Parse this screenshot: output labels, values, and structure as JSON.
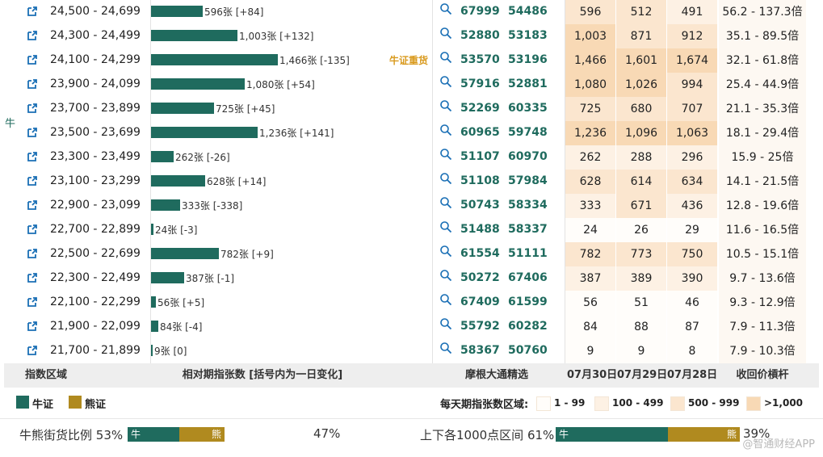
{
  "colors": {
    "bull": "#1f6b5e",
    "bear": "#b08a1f",
    "tag": "#d99a1e",
    "heat_1_99": "#fffdfa",
    "heat_100_499": "#fdf1e4",
    "heat_500_999": "#fbe6cf",
    "heat_1000_plus": "#f8d9b5"
  },
  "side_label": "牛",
  "max_count": 1466,
  "rows": [
    {
      "range": "24,500 - 24,699",
      "count": 596,
      "bar_label": "596张 [+84]",
      "tag": "",
      "code1": "67999",
      "code2": "54486",
      "d1": "596",
      "d2": "512",
      "d3": "491",
      "mult": "56.2 - 137.3倍"
    },
    {
      "range": "24,300 - 24,499",
      "count": 1003,
      "bar_label": "1,003张 [+132]",
      "tag": "",
      "code1": "52880",
      "code2": "53183",
      "d1": "1,003",
      "d2": "871",
      "d3": "912",
      "mult": "35.1 - 89.5倍"
    },
    {
      "range": "24,100 - 24,299",
      "count": 1466,
      "bar_label": "1,466张 [-135]",
      "tag": "牛证重货",
      "code1": "53570",
      "code2": "53196",
      "d1": "1,466",
      "d2": "1,601",
      "d3": "1,674",
      "mult": "32.1 - 61.8倍"
    },
    {
      "range": "23,900 - 24,099",
      "count": 1080,
      "bar_label": "1,080张 [+54]",
      "tag": "",
      "code1": "57916",
      "code2": "52881",
      "d1": "1,080",
      "d2": "1,026",
      "d3": "994",
      "mult": "25.4 - 44.9倍"
    },
    {
      "range": "23,700 - 23,899",
      "count": 725,
      "bar_label": "725张 [+45]",
      "tag": "",
      "code1": "52269",
      "code2": "60335",
      "d1": "725",
      "d2": "680",
      "d3": "707",
      "mult": "21.1 - 35.3倍"
    },
    {
      "range": "23,500 - 23,699",
      "count": 1236,
      "bar_label": "1,236张 [+141]",
      "tag": "",
      "code1": "60965",
      "code2": "59748",
      "d1": "1,236",
      "d2": "1,096",
      "d3": "1,063",
      "mult": "18.1 - 29.4倍"
    },
    {
      "range": "23,300 - 23,499",
      "count": 262,
      "bar_label": "262张 [-26]",
      "tag": "",
      "code1": "51107",
      "code2": "60970",
      "d1": "262",
      "d2": "288",
      "d3": "296",
      "mult": "15.9 - 25倍"
    },
    {
      "range": "23,100 - 23,299",
      "count": 628,
      "bar_label": "628张 [+14]",
      "tag": "",
      "code1": "51108",
      "code2": "57984",
      "d1": "628",
      "d2": "614",
      "d3": "634",
      "mult": "14.1 - 21.5倍"
    },
    {
      "range": "22,900 - 23,099",
      "count": 333,
      "bar_label": "333张 [-338]",
      "tag": "",
      "code1": "50743",
      "code2": "58334",
      "d1": "333",
      "d2": "671",
      "d3": "436",
      "mult": "12.8 - 19.6倍"
    },
    {
      "range": "22,700 - 22,899",
      "count": 24,
      "bar_label": "24张 [-3]",
      "tag": "",
      "code1": "51488",
      "code2": "58337",
      "d1": "24",
      "d2": "26",
      "d3": "29",
      "mult": "11.6 - 16.5倍"
    },
    {
      "range": "22,500 - 22,699",
      "count": 782,
      "bar_label": "782张 [+9]",
      "tag": "",
      "code1": "61554",
      "code2": "51111",
      "d1": "782",
      "d2": "773",
      "d3": "750",
      "mult": "10.5 - 15.1倍"
    },
    {
      "range": "22,300 - 22,499",
      "count": 387,
      "bar_label": "387张 [-1]",
      "tag": "",
      "code1": "50272",
      "code2": "67406",
      "d1": "387",
      "d2": "389",
      "d3": "390",
      "mult": "9.7 - 13.6倍"
    },
    {
      "range": "22,100 - 22,299",
      "count": 56,
      "bar_label": "56张 [+5]",
      "tag": "",
      "code1": "67409",
      "code2": "61599",
      "d1": "56",
      "d2": "51",
      "d3": "46",
      "mult": "9.3 - 12.9倍"
    },
    {
      "range": "21,900 - 22,099",
      "count": 84,
      "bar_label": "84张 [-4]",
      "tag": "",
      "code1": "55792",
      "code2": "60282",
      "d1": "84",
      "d2": "88",
      "d3": "87",
      "mult": "7.9 - 11.3倍"
    },
    {
      "range": "21,700 - 21,899",
      "count": 9,
      "bar_label": "9张 [0]",
      "tag": "",
      "code1": "58367",
      "code2": "50760",
      "d1": "9",
      "d2": "9",
      "d3": "8",
      "mult": "7.9 - 10.3倍"
    }
  ],
  "header": {
    "range": "指数区域",
    "count": "相对期指张数 [括号内为一日变化]",
    "picks": "摩根大通精选",
    "date1": "07月30日",
    "date2": "07月29日",
    "date3": "07月28日",
    "mult": "收回价槓杆"
  },
  "legend": {
    "bull": "牛证",
    "bear": "熊证",
    "heat_title": "每天期指张数区域:",
    "heat_1": "1 - 99",
    "heat_2": "100 - 499",
    "heat_3": "500 - 999",
    "heat_4": ">1,000"
  },
  "bottom": {
    "ratio_label": "牛熊街货比例",
    "ratio_bull_pct": 53,
    "ratio_bull_text": "53%",
    "ratio_bear_text": "47%",
    "range_label": "上下各1000点区间",
    "range_bull_pct": 61,
    "range_bull_text": "61%",
    "range_bear_text": "39%",
    "bull_short": "牛",
    "bear_short": "熊",
    "watermark": "@智通财经APP"
  }
}
